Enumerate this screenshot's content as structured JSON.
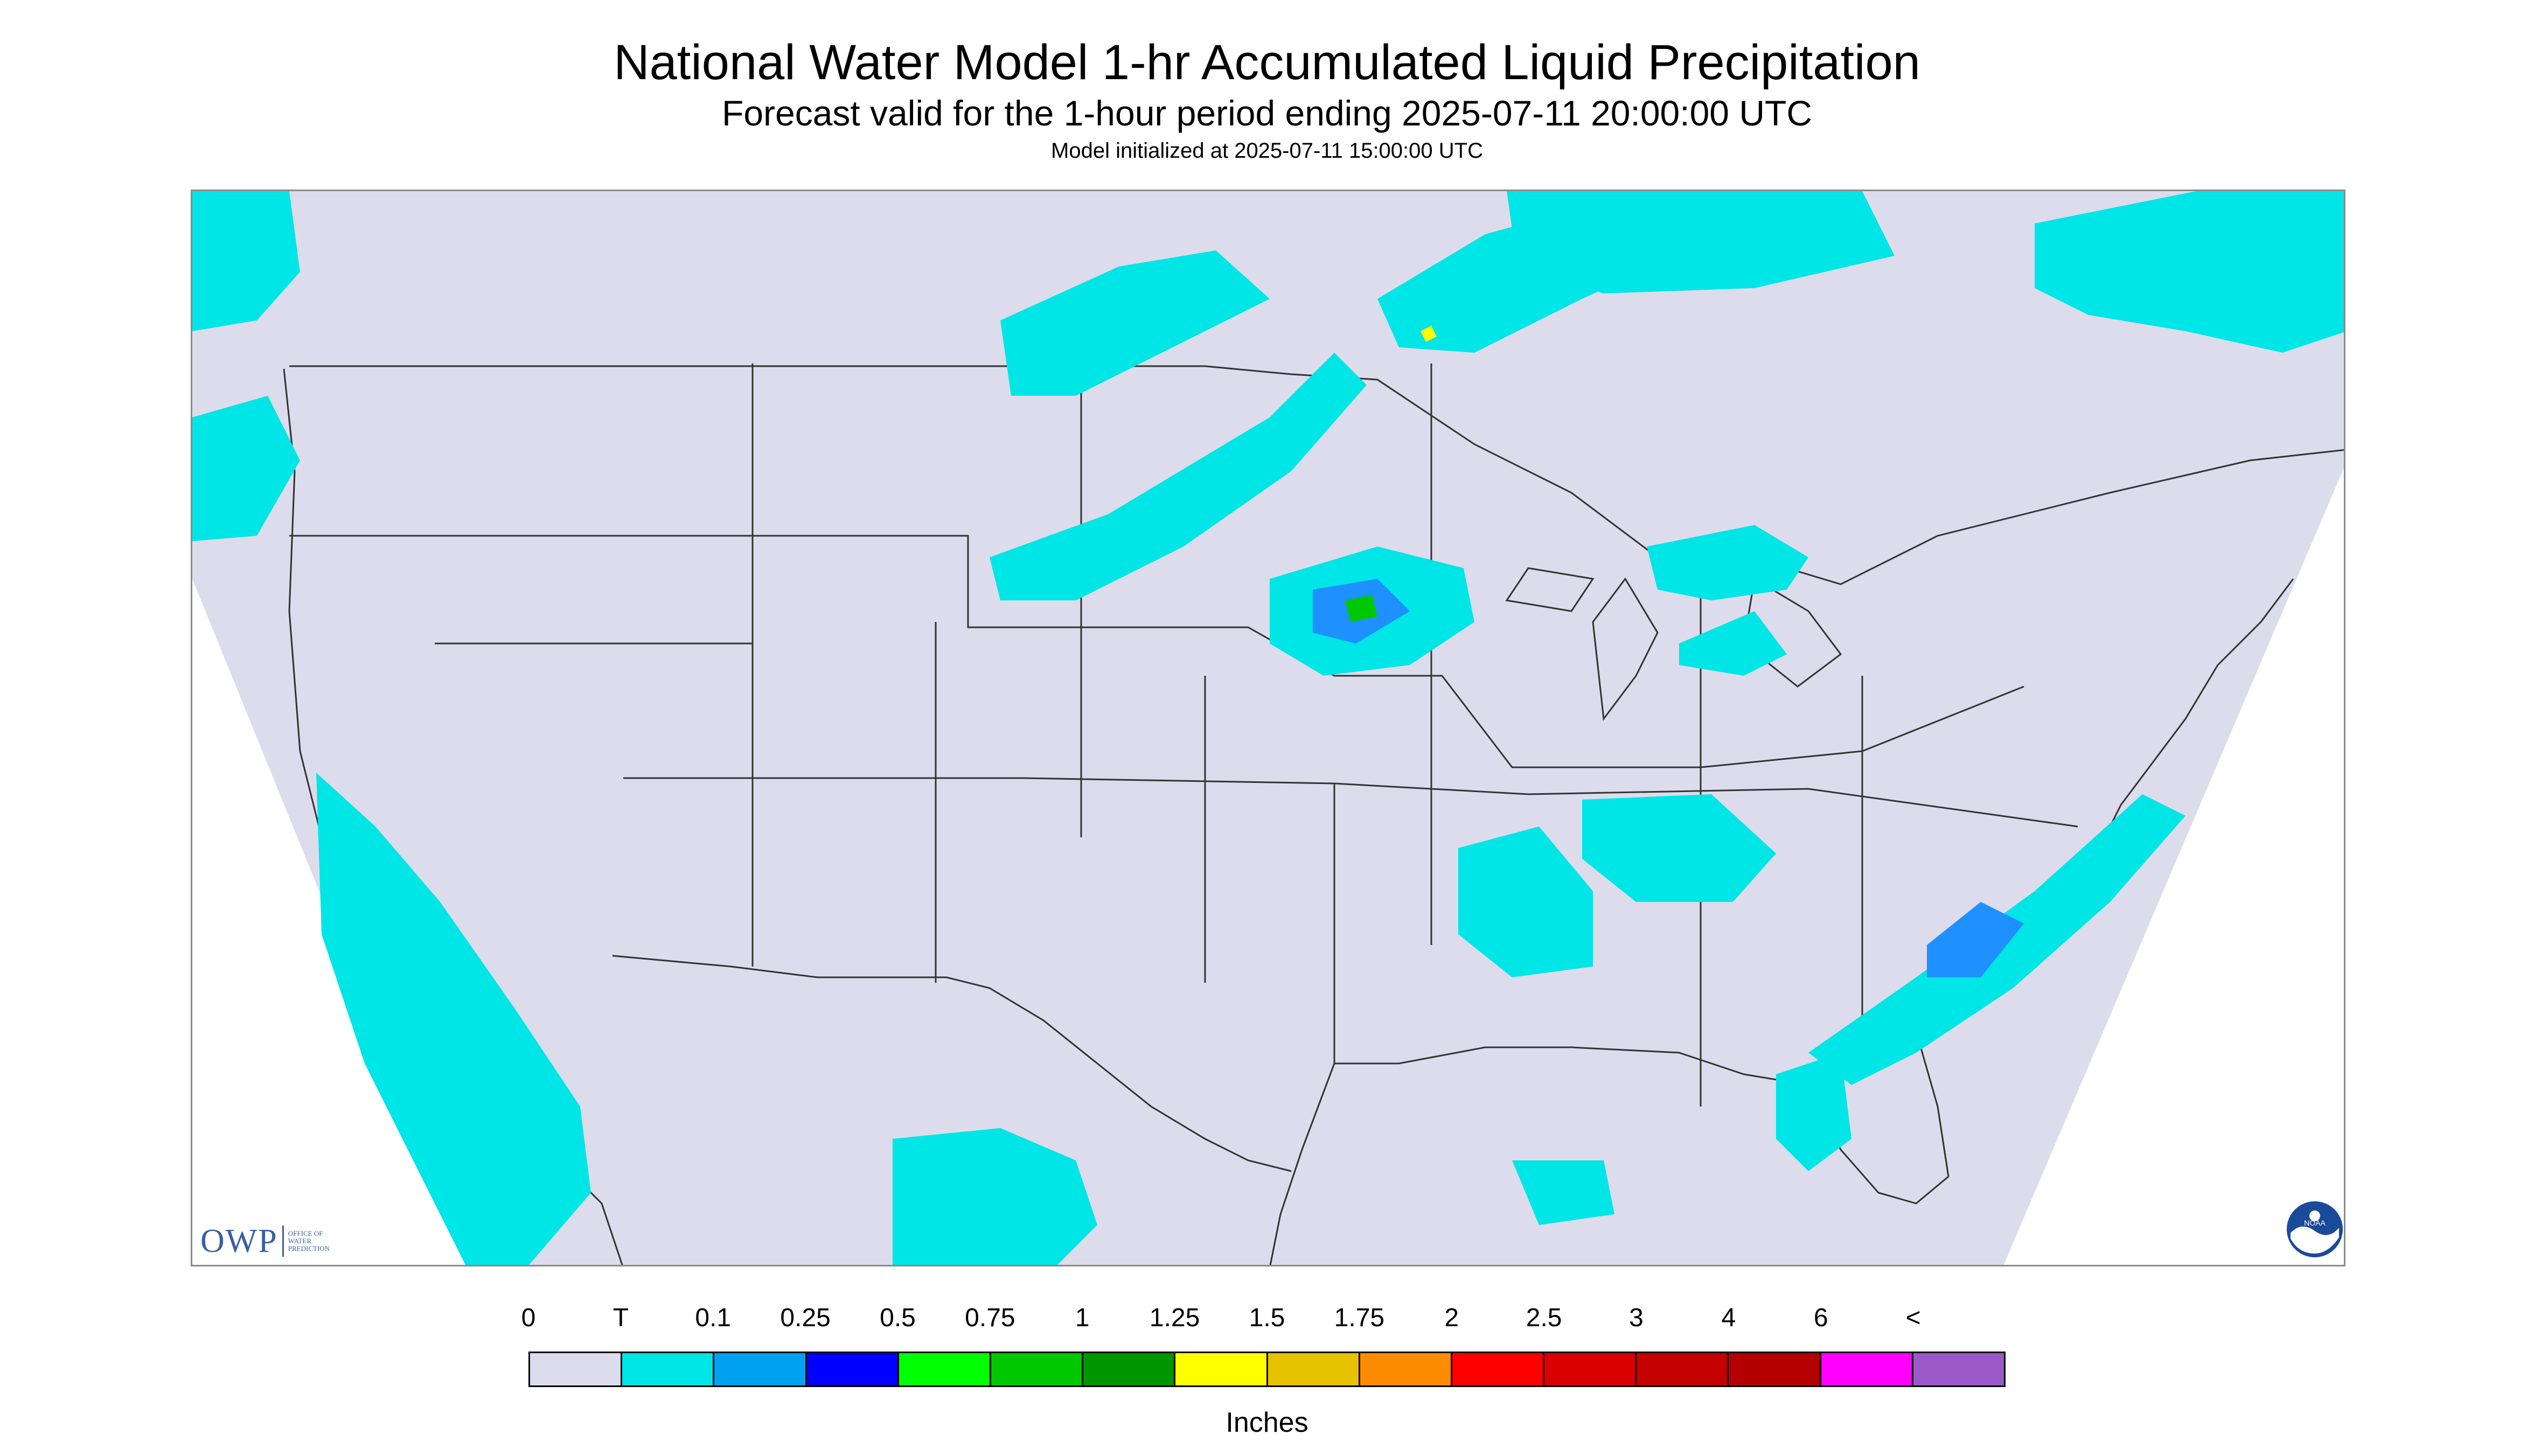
{
  "header": {
    "title": "National Water Model 1-hr Accumulated Liquid Precipitation",
    "subtitle": "Forecast valid for the 1-hour period ending 2025-07-11 20:00:00 UTC",
    "init_line": "Model initialized at 2025-07-11 15:00:00 UTC"
  },
  "map": {
    "background_color": "#dcdcec",
    "outside_domain_color": "#ffffff",
    "boundary_color": "#333333",
    "precip_colors": {
      "trace": "#00e5e5",
      "light": "#1e90ff",
      "medium": "#0000ff",
      "heavy": "#00c800",
      "heavier": "#ffff00"
    }
  },
  "legend": {
    "labels": [
      "0",
      "T",
      "0.1",
      "0.25",
      "0.5",
      "0.75",
      "1",
      "1.25",
      "1.5",
      "1.75",
      "2",
      "2.5",
      "3",
      "4",
      "6",
      "<"
    ],
    "colors": [
      "#dcdcec",
      "#00e5e5",
      "#00a0f0",
      "#0000ff",
      "#00ff00",
      "#00c800",
      "#009600",
      "#ffff00",
      "#e6c200",
      "#ff8c00",
      "#ff0000",
      "#d80000",
      "#c40000",
      "#b40000",
      "#ff00ff",
      "#9b59c8"
    ],
    "units": "Inches"
  },
  "logos": {
    "owp_mark": "OWP",
    "owp_name_lines": [
      "Office of",
      "Water",
      "Prediction"
    ],
    "noaa_mark": "NOAA"
  }
}
